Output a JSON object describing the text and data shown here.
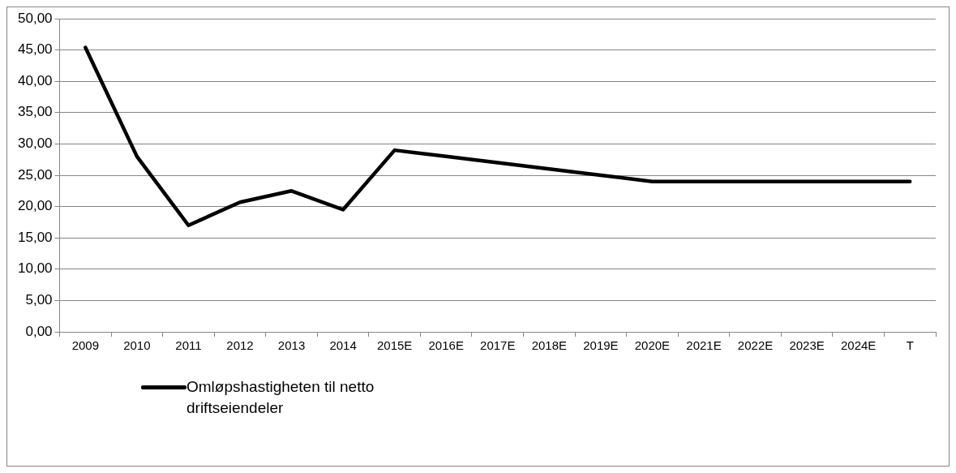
{
  "chart_data": {
    "type": "line",
    "categories": [
      "2009",
      "2010",
      "2011",
      "2012",
      "2013",
      "2014",
      "2015E",
      "2016E",
      "2017E",
      "2018E",
      "2019E",
      "2020E",
      "2021E",
      "2022E",
      "2023E",
      "2024E",
      "T"
    ],
    "series": [
      {
        "name": "Omløpshastigheten til netto driftseiendeler",
        "color": "#000000",
        "values": [
          45.4,
          28.0,
          17.0,
          20.7,
          22.5,
          19.5,
          29.0,
          28.0,
          27.0,
          26.0,
          25.0,
          24.0,
          24.0,
          24.0,
          24.0,
          24.0,
          24.0
        ]
      }
    ],
    "ylim": [
      0,
      50
    ],
    "yticks": [
      {
        "value": 0,
        "label": "0,00"
      },
      {
        "value": 5,
        "label": "5,00"
      },
      {
        "value": 10,
        "label": "10,00"
      },
      {
        "value": 15,
        "label": "15,00"
      },
      {
        "value": 20,
        "label": "20,00"
      },
      {
        "value": 25,
        "label": "25,00"
      },
      {
        "value": 30,
        "label": "30,00"
      },
      {
        "value": 35,
        "label": "35,00"
      },
      {
        "value": 40,
        "label": "40,00"
      },
      {
        "value": 45,
        "label": "45,00"
      },
      {
        "value": 50,
        "label": "50,00"
      }
    ],
    "grid": "y",
    "legend": "bottom",
    "marker": "none",
    "line_style": "solid"
  }
}
